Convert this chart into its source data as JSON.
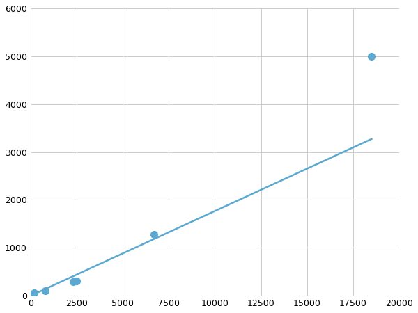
{
  "x": [
    200,
    800,
    2300,
    2500,
    6700,
    18500
  ],
  "y": [
    60,
    100,
    290,
    310,
    1280,
    5000
  ],
  "line_color": "#5ba8d0",
  "marker_color": "#5ba8d0",
  "marker_size": 7,
  "line_width": 1.8,
  "xlim": [
    0,
    20000
  ],
  "ylim": [
    0,
    6000
  ],
  "xticks": [
    0,
    2500,
    5000,
    7500,
    10000,
    12500,
    15000,
    17500,
    20000
  ],
  "yticks": [
    0,
    1000,
    2000,
    3000,
    4000,
    5000,
    6000
  ],
  "xtick_labels": [
    "0",
    "2500",
    "5000",
    "7500",
    "10000",
    "12500",
    "15000",
    "17500",
    "20000"
  ],
  "ytick_labels": [
    "0",
    "1000",
    "2000",
    "3000",
    "4000",
    "5000",
    "6000"
  ],
  "grid": true,
  "background_color": "#ffffff",
  "tick_fontsize": 9
}
